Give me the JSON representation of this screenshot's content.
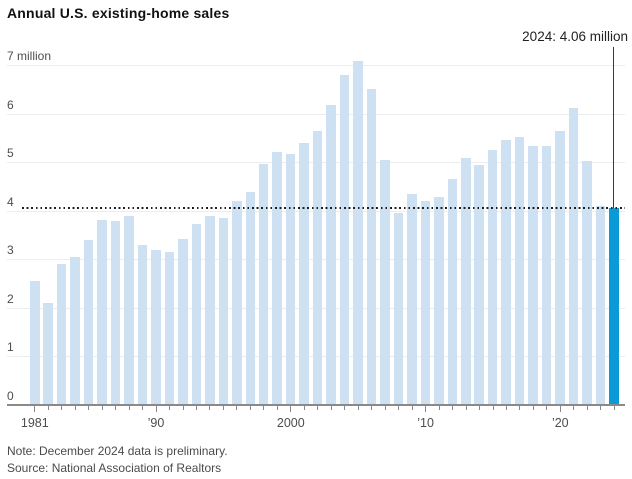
{
  "title": "Annual U.S. existing-home sales",
  "annotation": {
    "label": "2024: 4.06 million"
  },
  "notes": {
    "note": "Note: December 2024 data is preliminary.",
    "source": "Source: National Association of Realtors"
  },
  "chart_data": {
    "type": "bar",
    "title": "Annual U.S. existing-home sales",
    "unit": "millions of homes sold per year",
    "years": [
      1981,
      1982,
      1983,
      1984,
      1985,
      1986,
      1987,
      1988,
      1989,
      1990,
      1991,
      1992,
      1993,
      1994,
      1995,
      1996,
      1997,
      1998,
      1999,
      2000,
      2001,
      2002,
      2003,
      2004,
      2005,
      2006,
      2007,
      2008,
      2009,
      2010,
      2011,
      2012,
      2013,
      2014,
      2015,
      2016,
      2017,
      2018,
      2019,
      2020,
      2021,
      2022,
      2023,
      2024
    ],
    "values": [
      2.55,
      2.1,
      2.9,
      3.05,
      3.4,
      3.8,
      3.78,
      3.9,
      3.3,
      3.2,
      3.15,
      3.42,
      3.73,
      3.9,
      3.85,
      4.2,
      4.38,
      4.97,
      5.22,
      5.17,
      5.4,
      5.65,
      6.18,
      6.8,
      7.08,
      6.5,
      5.04,
      3.95,
      4.35,
      4.2,
      4.28,
      4.66,
      5.09,
      4.94,
      5.25,
      5.45,
      5.51,
      5.34,
      5.34,
      5.64,
      6.12,
      5.03,
      4.09,
      4.06
    ],
    "highlight_year": 2024,
    "highlight_value": 4.06,
    "reference_line_value": 4.06,
    "ylim": [
      0,
      7
    ],
    "yticks": [
      {
        "label": "7 million",
        "value": 7
      },
      {
        "label": "6",
        "value": 6
      },
      {
        "label": "5",
        "value": 5
      },
      {
        "label": "4",
        "value": 4
      },
      {
        "label": "3",
        "value": 3
      },
      {
        "label": "2",
        "value": 2
      },
      {
        "label": "1",
        "value": 1
      },
      {
        "label": "0",
        "value": 0
      }
    ],
    "x_labels": [
      {
        "label": "1981",
        "year": 1981
      },
      {
        "label": "’90",
        "year": 1990
      },
      {
        "label": "2000",
        "year": 2000
      },
      {
        "label": "’10",
        "year": 2010
      },
      {
        "label": "’20",
        "year": 2020
      }
    ],
    "grid": true,
    "legend": "none",
    "colors": {
      "bar": "#cee1f2",
      "accent_bar": "#0a9ad6",
      "gridline": "#ededed",
      "axis": "#8a8a8a",
      "reference_line": "#1f1f1f",
      "annotation_line": "#3a3a3a"
    }
  }
}
